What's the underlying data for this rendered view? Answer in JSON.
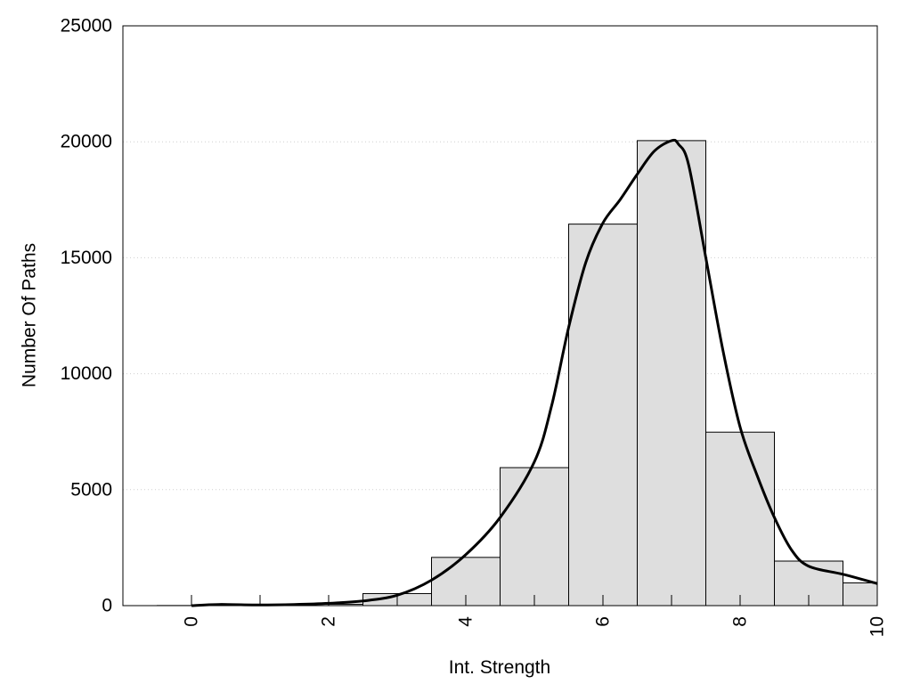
{
  "chart_data": {
    "type": "bar",
    "title": "",
    "xlabel": "Int. Strength",
    "ylabel": "Number Of Paths",
    "xlim": [
      -1,
      10
    ],
    "ylim": [
      0,
      25000
    ],
    "x_ticks": [
      0,
      2,
      4,
      6,
      8,
      10
    ],
    "y_ticks": [
      0,
      5000,
      10000,
      15000,
      20000,
      25000
    ],
    "grid": "horizontal-dotted",
    "legend": "none",
    "bar_width": 1,
    "bar_color": "#dedede",
    "bar_edge_color": "#000000",
    "bins_x": [
      0,
      1,
      2,
      3,
      4,
      5,
      6,
      7,
      8,
      9,
      10
    ],
    "bins_values": [
      5,
      20,
      60,
      520,
      2080,
      5950,
      16450,
      20050,
      7480,
      1920,
      980
    ],
    "curve": {
      "color": "#000000",
      "x": [
        0,
        0.4,
        1,
        1.5,
        2,
        2.5,
        3,
        3.5,
        4,
        4.5,
        5,
        5.25,
        5.5,
        5.75,
        6,
        6.25,
        6.5,
        6.75,
        7,
        7.1,
        7.25,
        7.5,
        7.75,
        8,
        8.25,
        8.5,
        8.75,
        9,
        9.5,
        10
      ],
      "y": [
        0,
        50,
        30,
        50,
        100,
        200,
        450,
        1100,
        2200,
        3800,
        6200,
        8600,
        12000,
        14800,
        16500,
        17500,
        18600,
        19600,
        20050,
        19900,
        19000,
        15000,
        11000,
        7700,
        5600,
        3800,
        2400,
        1700,
        1350,
        950
      ]
    }
  }
}
